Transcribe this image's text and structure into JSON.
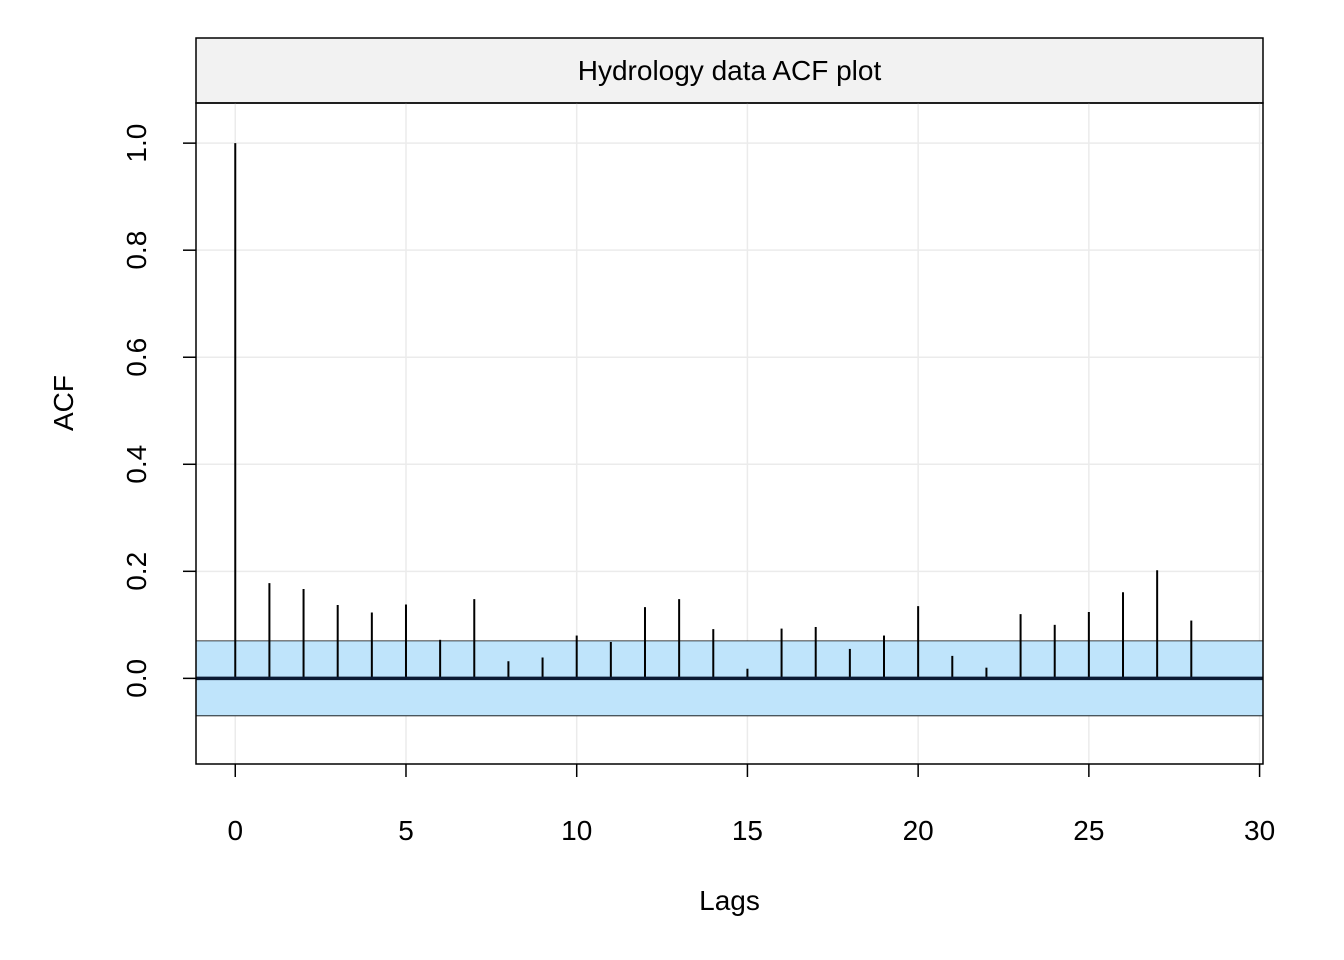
{
  "chart_data": {
    "type": "bar",
    "title": "Hydrology data ACF plot",
    "xlabel": "Lags",
    "ylabel": "ACF",
    "xlim": [
      -1.15,
      30.1
    ],
    "ylim": [
      -0.16,
      1.075
    ],
    "x_ticks": [
      0,
      5,
      10,
      15,
      20,
      25,
      30
    ],
    "x_tick_labels": [
      "0",
      "5",
      "10",
      "15",
      "20",
      "25",
      "30"
    ],
    "y_ticks": [
      0.0,
      0.2,
      0.4,
      0.6,
      0.8,
      1.0
    ],
    "y_tick_labels": [
      "0.0",
      "0.2",
      "0.4",
      "0.6",
      "0.8",
      "1.0"
    ],
    "grid": true,
    "confidence_band": {
      "lower": -0.07,
      "upper": 0.07,
      "color": "#bfe4fb"
    },
    "colors": {
      "strip": "#f2f2f2",
      "grid": "#ebebeb",
      "zero_line": "#0a1a33",
      "spike": "#000000"
    },
    "lags": [
      0,
      1,
      2,
      3,
      4,
      5,
      6,
      7,
      8,
      9,
      10,
      11,
      12,
      13,
      14,
      15,
      16,
      17,
      18,
      19,
      20,
      21,
      22,
      23,
      24,
      25,
      26,
      27,
      28
    ],
    "values": [
      1.0,
      0.178,
      0.167,
      0.137,
      0.123,
      0.138,
      0.072,
      0.148,
      0.032,
      0.039,
      0.08,
      0.068,
      0.133,
      0.148,
      0.092,
      0.018,
      0.093,
      0.096,
      0.055,
      0.08,
      0.135,
      0.042,
      0.02,
      0.12,
      0.1,
      0.124,
      0.161,
      0.202,
      0.108
    ]
  }
}
